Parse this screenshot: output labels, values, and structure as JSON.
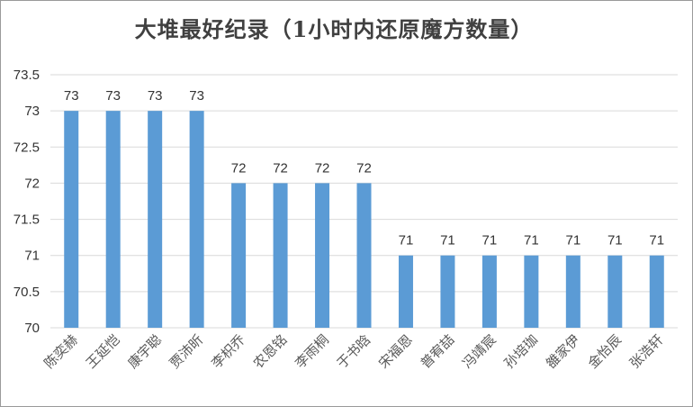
{
  "chart_data": {
    "type": "bar",
    "title": "大堆最好纪录（1小时内还原魔方数量）",
    "categories": [
      "陈奕赫",
      "王延恺",
      "康宇聪",
      "贾沛昕",
      "李枳乔",
      "农恩铭",
      "李雨桐",
      "于书晗",
      "宋福恩",
      "普宥喆",
      "冯靖宸",
      "孙培珈",
      "雒家伊",
      "金怡辰",
      "张浩轩"
    ],
    "values": [
      73,
      73,
      73,
      73,
      72,
      72,
      72,
      72,
      71,
      71,
      71,
      71,
      71,
      71,
      71
    ],
    "ylim": [
      70,
      73.5
    ],
    "yticks": [
      "70",
      "70.5",
      "71",
      "71.5",
      "72",
      "72.5",
      "73",
      "73.5"
    ],
    "grid": true,
    "bar_color": "#5b9bd5",
    "xlabel": "",
    "ylabel": ""
  }
}
